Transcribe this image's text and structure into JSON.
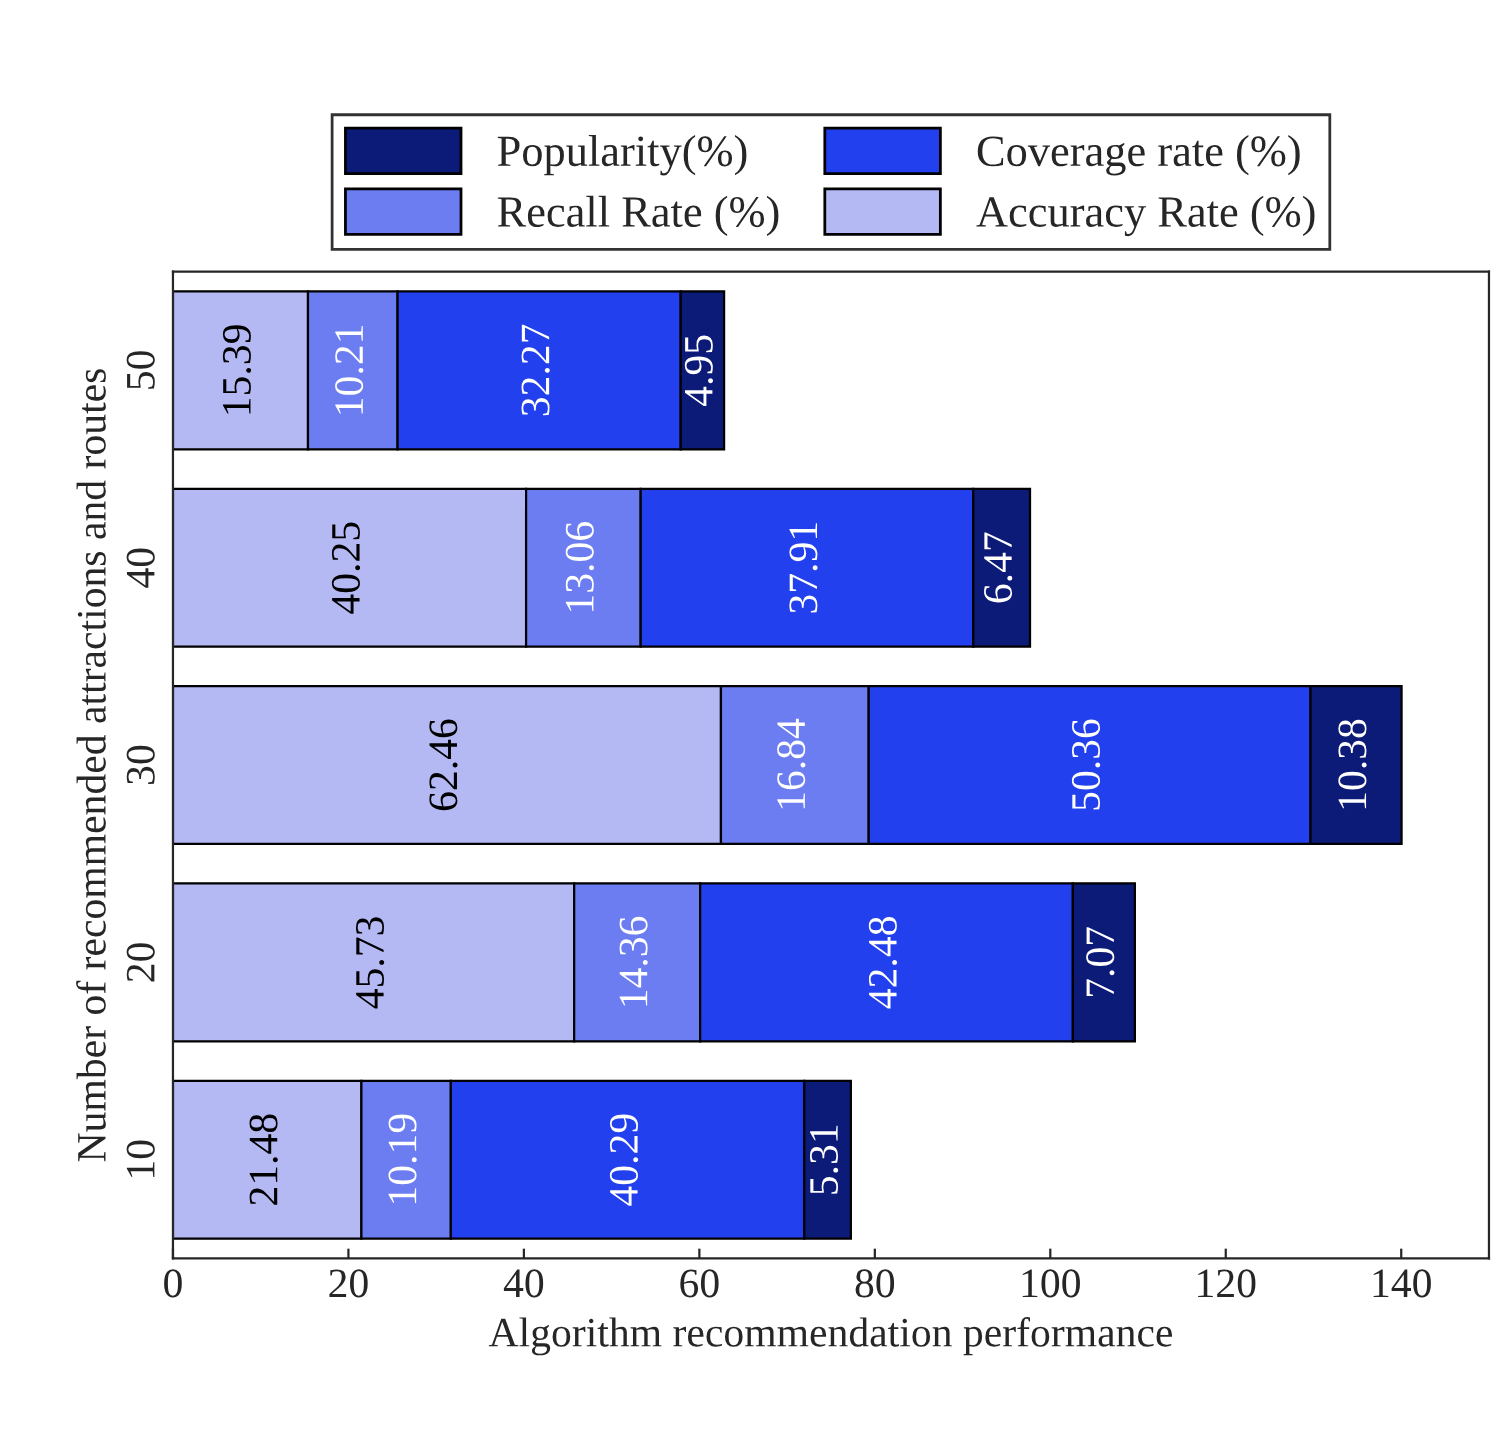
{
  "chart_data": {
    "type": "bar",
    "orientation": "horizontal",
    "stacked": true,
    "data_labels": true,
    "xlabel": "Algorithm recommendation performance",
    "ylabel": "Number of recommended attractions and routes",
    "categories": [
      "50",
      "40",
      "30",
      "20",
      "10"
    ],
    "series": [
      {
        "name": "Accuracy Rate (%)",
        "color": "#b4b9f3",
        "values": [
          15.39,
          40.25,
          62.46,
          45.73,
          21.48
        ]
      },
      {
        "name": "Recall Rate (%)",
        "color": "#6b7df0",
        "values": [
          10.21,
          13.06,
          16.84,
          14.36,
          10.19
        ]
      },
      {
        "name": "Coverage rate (%)",
        "color": "#2340ee",
        "values": [
          32.27,
          37.91,
          50.36,
          42.48,
          40.29
        ]
      },
      {
        "name": "Popularity(%)",
        "color": "#0c1a78",
        "values": [
          4.95,
          6.47,
          10.38,
          7.07,
          5.31
        ]
      }
    ],
    "xlim": [
      0,
      150
    ],
    "xticks": [
      0,
      20,
      40,
      60,
      80,
      100,
      120,
      140
    ],
    "legend": "top",
    "grid": false
  }
}
